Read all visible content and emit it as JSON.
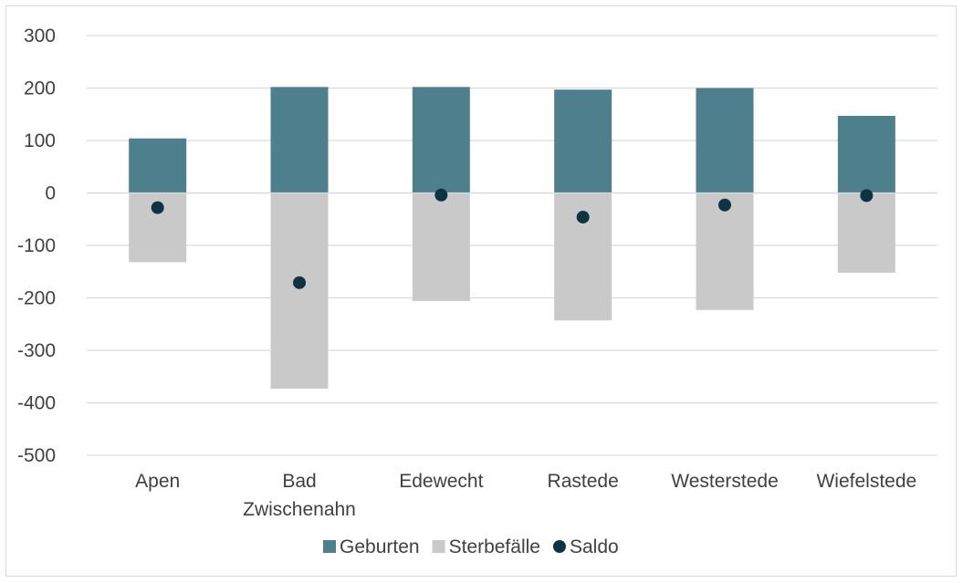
{
  "chart_data": {
    "type": "bar",
    "stacked": true,
    "categories": [
      [
        "Apen"
      ],
      [
        "Bad",
        "Zwischenahn"
      ],
      [
        "Edewecht"
      ],
      [
        "Rastede"
      ],
      [
        "Westerstede"
      ],
      [
        "Wiefelstede"
      ]
    ],
    "series": [
      {
        "name": "Geburten",
        "kind": "bar",
        "color": "#4e7f8c",
        "values": [
          104,
          202,
          202,
          197,
          200,
          147
        ]
      },
      {
        "name": "Sterbefälle",
        "kind": "bar",
        "color": "#c9c9c9",
        "values": [
          -132,
          -373,
          -206,
          -243,
          -223,
          -152
        ]
      },
      {
        "name": "Saldo",
        "kind": "marker",
        "color": "#0e3444",
        "values": [
          -28,
          -171,
          -4,
          -46,
          -23,
          -5
        ]
      }
    ],
    "yaxis": {
      "min": -500,
      "max": 300,
      "step": 100
    },
    "grid": true,
    "legend_position": "bottom"
  }
}
